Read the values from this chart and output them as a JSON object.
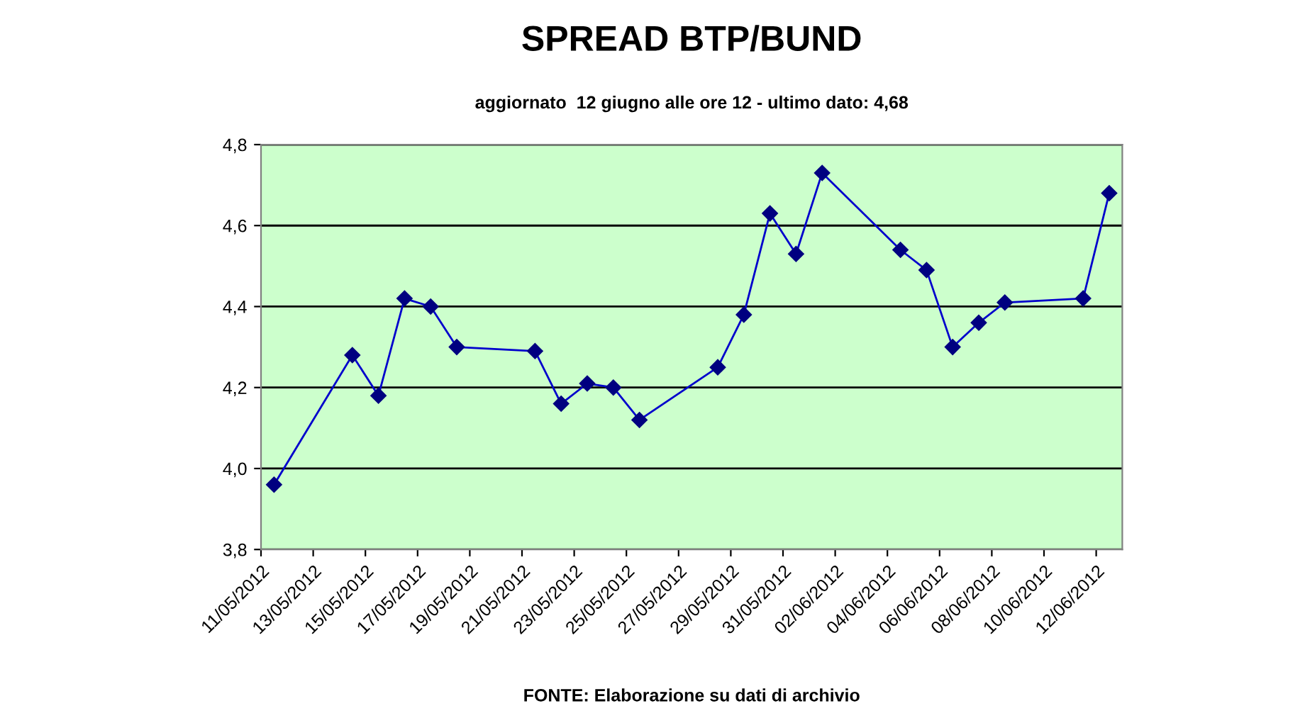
{
  "chart_data": {
    "type": "line",
    "title": "SPREAD BTP/BUND",
    "subtitle": "aggiornato  12 giugno alle ore 12 - ultimo dato: 4,68",
    "annotations": [
      "FONTE: Elaborazione su dati di archivio"
    ],
    "x": [
      "2012-05-11T12:00",
      "2012-05-14T12:00",
      "2012-05-15T12:00",
      "2012-05-16T12:00",
      "2012-05-17T12:00",
      "2012-05-18T12:00",
      "2012-05-21T12:00",
      "2012-05-22T12:00",
      "2012-05-23T12:00",
      "2012-05-24T12:00",
      "2012-05-25T12:00",
      "2012-05-28T12:00",
      "2012-05-29T12:00",
      "2012-05-30T12:00",
      "2012-05-31T12:00",
      "2012-06-01T12:00",
      "2012-06-04T12:00",
      "2012-06-05T12:00",
      "2012-06-06T12:00",
      "2012-06-07T12:00",
      "2012-06-08T12:00",
      "2012-06-11T12:00",
      "2012-06-12T12:00"
    ],
    "series": [
      {
        "color": "#000080",
        "values": [
          3.96,
          4.28,
          4.18,
          4.42,
          4.4,
          4.3,
          4.29,
          4.16,
          4.21,
          4.2,
          4.12,
          4.25,
          4.38,
          4.63,
          4.53,
          4.73,
          4.54,
          4.49,
          4.3,
          4.36,
          4.41,
          4.42,
          4.68
        ]
      }
    ],
    "xlim": [
      "2012-05-11",
      "2012-06-13"
    ],
    "xticks": [
      {
        "value": "2012-05-11",
        "label": "11/05/2012"
      },
      {
        "value": "2012-05-13",
        "label": "13/05/2012"
      },
      {
        "value": "2012-05-15",
        "label": "15/05/2012"
      },
      {
        "value": "2012-05-17",
        "label": "17/05/2012"
      },
      {
        "value": "2012-05-19",
        "label": "19/05/2012"
      },
      {
        "value": "2012-05-21",
        "label": "21/05/2012"
      },
      {
        "value": "2012-05-23",
        "label": "23/05/2012"
      },
      {
        "value": "2012-05-25",
        "label": "25/05/2012"
      },
      {
        "value": "2012-05-27",
        "label": "27/05/2012"
      },
      {
        "value": "2012-05-29",
        "label": "29/05/2012"
      },
      {
        "value": "2012-05-31",
        "label": "31/05/2012"
      },
      {
        "value": "2012-06-02",
        "label": "02/06/2012"
      },
      {
        "value": "2012-06-04",
        "label": "04/06/2012"
      },
      {
        "value": "2012-06-06",
        "label": "06/06/2012"
      },
      {
        "value": "2012-06-08",
        "label": "08/06/2012"
      },
      {
        "value": "2012-06-10",
        "label": "10/06/2012"
      },
      {
        "value": "2012-06-12",
        "label": "12/06/2012"
      }
    ],
    "ylim": [
      3.8,
      4.8
    ],
    "yticks": [
      {
        "value": 3.8,
        "label": "3,8"
      },
      {
        "value": 4.0,
        "label": "4,0"
      },
      {
        "value": 4.2,
        "label": "4,2"
      },
      {
        "value": 4.4,
        "label": "4,4"
      },
      {
        "value": 4.6,
        "label": "4,6"
      },
      {
        "value": 4.8,
        "label": "4,8"
      }
    ],
    "grid": "y",
    "marker": "diamond",
    "line_style": "solid",
    "legend": false
  }
}
